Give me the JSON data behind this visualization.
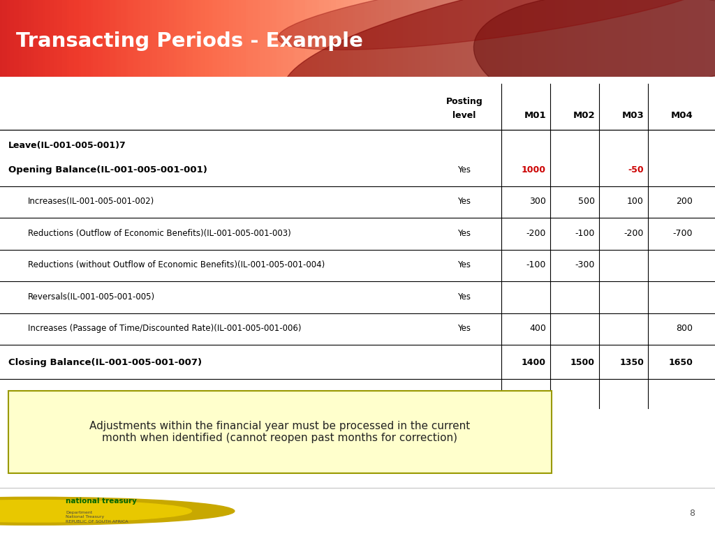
{
  "title": "Transacting Periods - Example",
  "title_color": "#FFFFFF",
  "bg_color": "#FFFFFF",
  "page_number": "8",
  "leave_label": "Leave(IL-001-005-001)7",
  "rows": [
    {
      "label": "Opening Balance(IL-001-005-001-001)",
      "indent": false,
      "bold": true,
      "posting": "Yes",
      "values": [
        "1000",
        "",
        "-50",
        ""
      ],
      "value_colors": [
        "#CC0000",
        "#000000",
        "#CC0000",
        "#000000"
      ]
    },
    {
      "label": "Increases(IL-001-005-001-002)",
      "indent": true,
      "bold": false,
      "posting": "Yes",
      "values": [
        "300",
        "500",
        "100",
        "200"
      ],
      "value_colors": [
        "#000000",
        "#000000",
        "#000000",
        "#000000"
      ]
    },
    {
      "label": "Reductions (Outflow of Economic Benefits)(IL-001-005-001-003)",
      "indent": true,
      "bold": false,
      "posting": "Yes",
      "values": [
        "-200",
        "-100",
        "-200",
        "-700"
      ],
      "value_colors": [
        "#000000",
        "#000000",
        "#000000",
        "#000000"
      ]
    },
    {
      "label": "Reductions (without Outflow of Economic Benefits)(IL-001-005-001-004)",
      "indent": true,
      "bold": false,
      "posting": "Yes",
      "values": [
        "-100",
        "-300",
        "",
        ""
      ],
      "value_colors": [
        "#000000",
        "#000000",
        "#000000",
        "#000000"
      ]
    },
    {
      "label": "Reversals(IL-001-005-001-005)",
      "indent": true,
      "bold": false,
      "posting": "Yes",
      "values": [
        "",
        "",
        "",
        ""
      ],
      "value_colors": [
        "#000000",
        "#000000",
        "#000000",
        "#000000"
      ]
    },
    {
      "label": "Increases (Passage of Time/Discounted Rate)(IL-001-005-001-006)",
      "indent": true,
      "bold": false,
      "posting": "Yes",
      "values": [
        "400",
        "",
        "",
        "800"
      ],
      "value_colors": [
        "#000000",
        "#000000",
        "#000000",
        "#000000"
      ]
    },
    {
      "label": "Closing Balance(IL-001-005-001-007)",
      "indent": false,
      "bold": true,
      "posting": "",
      "values": [
        "1400",
        "1500",
        "1350",
        "1650"
      ],
      "value_colors": [
        "#000000",
        "#000000",
        "#000000",
        "#000000"
      ]
    }
  ],
  "note_text": "Adjustments within the financial year must be processed in the current\nmonth when identified (cannot reopen past months for correction)",
  "note_bg": "#FFFFCC",
  "note_border_color": "#999900",
  "header_red": "#AA0000",
  "header_dark_red": "#7A0000",
  "footer_line_color": "#CCCCCC"
}
